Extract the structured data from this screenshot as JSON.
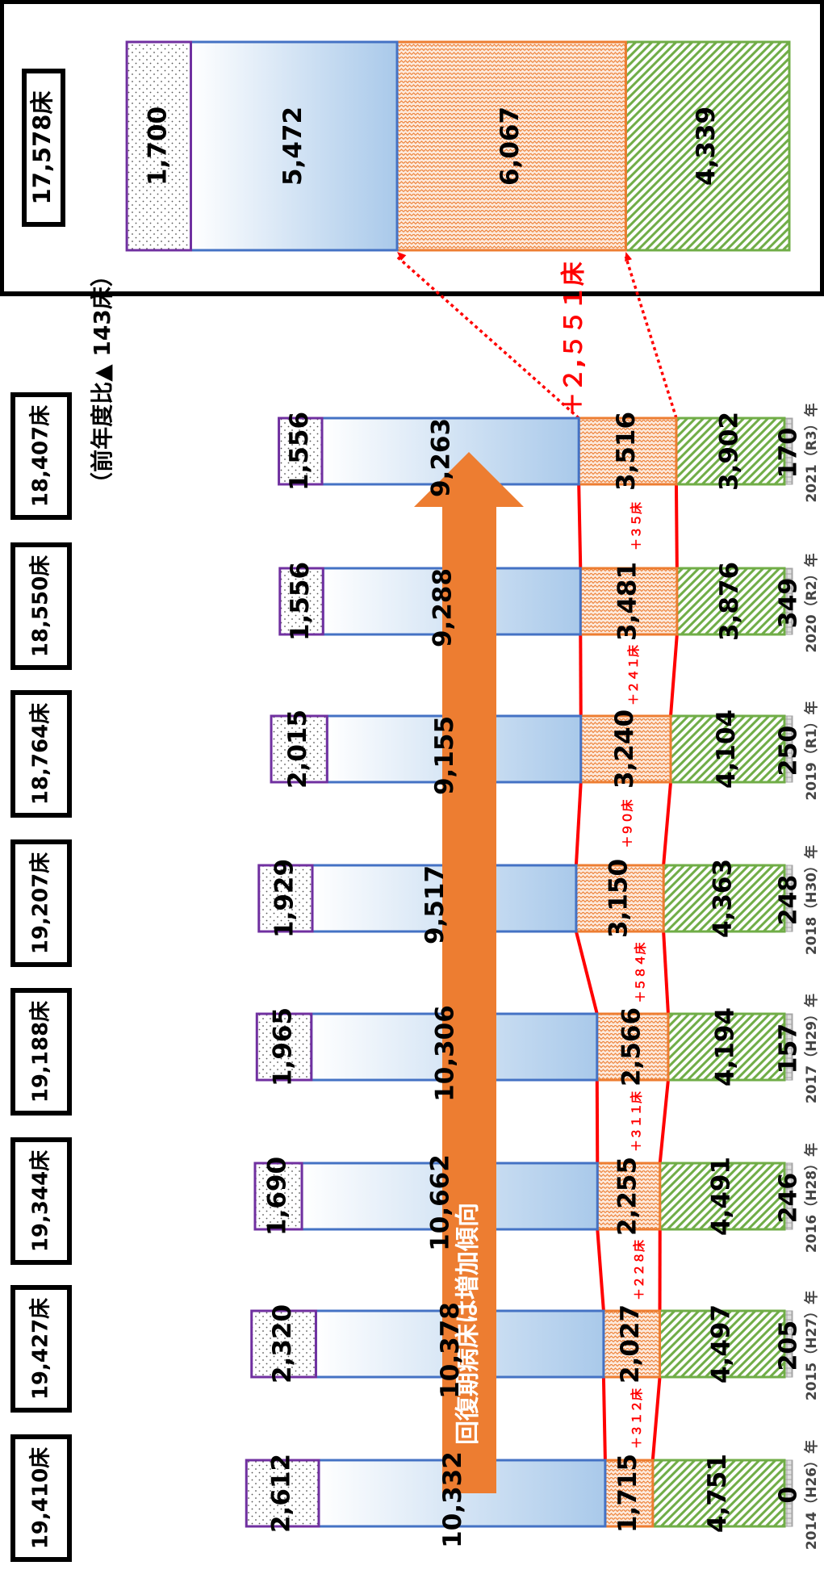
{
  "chart_data": {
    "type": "bar",
    "orientation": "stacked-horizontal-rotated",
    "categories": [
      "2014（H26）年",
      "2015（H27）年",
      "2016（H28）年",
      "2017（H29）年",
      "2018（H30）年",
      "2019（R1）年",
      "2020（R2）年",
      "2021（R3）年"
    ],
    "totals": [
      "19,410床",
      "19,427床",
      "19,344床",
      "19,188床",
      "19,207床",
      "18,764床",
      "18,550床",
      "18,407床"
    ],
    "series": [
      {
        "key": "s1",
        "values": [
          0,
          205,
          246,
          157,
          248,
          250,
          349,
          170
        ],
        "labels": [
          "0",
          "205",
          "246",
          "157",
          "248",
          "250",
          "349",
          "170"
        ],
        "color": "#a6a6a6"
      },
      {
        "key": "s2",
        "values": [
          4751,
          4497,
          4491,
          4194,
          4363,
          4104,
          3876,
          3902
        ],
        "labels": [
          "4,751",
          "4,497",
          "4,491",
          "4,194",
          "4,363",
          "4,104",
          "3,876",
          "3,902"
        ],
        "color": "#70ad47"
      },
      {
        "key": "s3",
        "values": [
          1715,
          2027,
          2255,
          2566,
          3150,
          3240,
          3481,
          3516
        ],
        "labels": [
          "1,715",
          "2,027",
          "2,255",
          "2,566",
          "3,150",
          "3,240",
          "3,481",
          "3,516"
        ],
        "color": "#ed7d31"
      },
      {
        "key": "s4",
        "values": [
          10332,
          10378,
          10662,
          10306,
          9517,
          9155,
          9288,
          9263
        ],
        "labels": [
          "10,332",
          "10,378",
          "10,662",
          "10,306",
          "9,517",
          "9,155",
          "9,288",
          "9,263"
        ],
        "color": "#4472c4"
      },
      {
        "key": "s5",
        "values": [
          2612,
          2320,
          1690,
          1965,
          1929,
          2015,
          1556,
          1556
        ],
        "labels": [
          "2,612",
          "2,320",
          "1,690",
          "1,965",
          "1,929",
          "2,015",
          "1,556",
          "1,556"
        ],
        "color": "#7030a0"
      }
    ],
    "increments": [
      "＋３１２床",
      "＋２２８床",
      "＋３１１床",
      "＋５８４床",
      "＋９０床",
      "＋２４１床",
      "＋３５床"
    ],
    "annotation_prev_year": "（前年度比▲ 143床）",
    "arrow_label": "回復期病床は増加傾向",
    "target": {
      "total": "17,578床",
      "values": [
        4339,
        6067,
        5472,
        1700
      ],
      "labels": [
        "4,339",
        "6,067",
        "5,472",
        "1,700"
      ],
      "gap_label": "＋２,５５１床"
    }
  }
}
